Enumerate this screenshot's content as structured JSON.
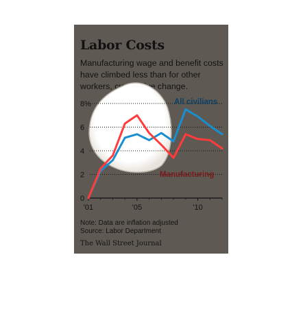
{
  "title": "Labor Costs",
  "subtitle": "Manufacturing wage and benefit costs have climbed less than for other workers, cumulative change.",
  "note": "Note: Data are inflation adjusted",
  "source": "Source: Labor Department",
  "publisher": "The Wall Street Journal",
  "colors": {
    "background": "#5e5a53",
    "all_civilians": "#1a8fd0",
    "all_civilians_label": "#0c3f66",
    "manufacturing": "#ff3b3b",
    "manufacturing_label": "#7a1a1a",
    "highlight": "#ffffff"
  },
  "chart_data": {
    "type": "line",
    "ylim": [
      0,
      8
    ],
    "xlim": [
      2001,
      2012
    ],
    "y_ticks": [
      0,
      2,
      4,
      6,
      8
    ],
    "y_tick_labels": [
      "0",
      "2",
      "4",
      "6",
      "8%"
    ],
    "x_ticks": [
      2001,
      2005,
      2010
    ],
    "x_tick_labels": [
      "'01",
      "'05",
      "'10"
    ],
    "grid": "horizontal dotted",
    "x": [
      2001,
      2002,
      2003,
      2004,
      2005,
      2006,
      2007,
      2008,
      2009,
      2010,
      2011,
      2012
    ],
    "series": [
      {
        "name": "All civilians",
        "values": [
          0,
          2.3,
          3.2,
          5.1,
          5.4,
          4.9,
          5.5,
          4.8,
          7.5,
          6.9,
          6.1,
          5.4
        ]
      },
      {
        "name": "Manufacturing",
        "values": [
          0,
          2.5,
          3.6,
          6.3,
          7.0,
          5.5,
          4.5,
          3.4,
          5.4,
          5.0,
          4.9,
          4.2
        ]
      }
    ]
  }
}
